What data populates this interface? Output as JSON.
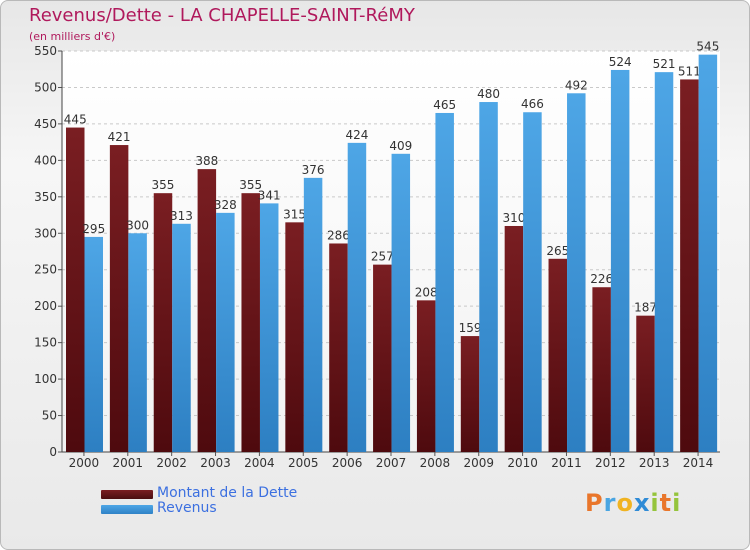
{
  "header": {
    "title": "Revenus/Dette - LA CHAPELLE-SAINT-RéMY",
    "subtitle": "(en milliers d'€)"
  },
  "colors": {
    "title": "#b0195c",
    "dette": "#7a1e22",
    "revenus": "#4ea6e6",
    "legend_text": "#3c70e0"
  },
  "legend": [
    {
      "label": "Montant de la Dette",
      "color": "#7a1e22"
    },
    {
      "label": "Revenus",
      "color": "#4ea6e6"
    }
  ],
  "brand": {
    "letters": [
      "P",
      "r",
      "o",
      "x",
      "i",
      "t",
      "i"
    ],
    "colors": [
      "#e9762b",
      "#49a5e2",
      "#f0b321",
      "#2f8bd6",
      "#95c43c",
      "#e9762b",
      "#95c43c"
    ]
  },
  "chart_data": {
    "type": "bar",
    "categories": [
      "2000",
      "2001",
      "2002",
      "2003",
      "2004",
      "2005",
      "2006",
      "2007",
      "2008",
      "2009",
      "2010",
      "2011",
      "2012",
      "2013",
      "2014"
    ],
    "series": [
      {
        "name": "Montant de la Dette",
        "values": [
          445,
          421,
          355,
          388,
          355,
          315,
          286,
          257,
          208,
          159,
          310,
          265,
          226,
          187,
          511
        ]
      },
      {
        "name": "Revenus",
        "values": [
          295,
          300,
          313,
          328,
          341,
          376,
          424,
          409,
          465,
          480,
          466,
          492,
          524,
          521,
          545
        ]
      }
    ],
    "ylim": [
      0,
      550
    ],
    "yticks": [
      0,
      50,
      100,
      150,
      200,
      250,
      300,
      350,
      400,
      450,
      500,
      550
    ],
    "grid": true,
    "legend_position": "bottom-left"
  }
}
